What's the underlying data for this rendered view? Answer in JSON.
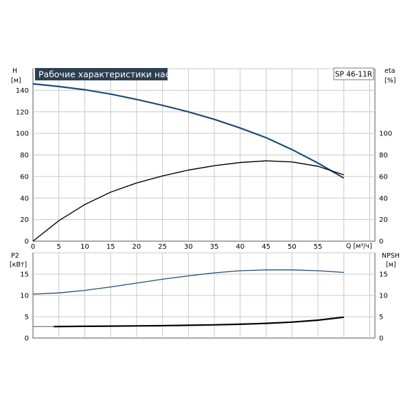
{
  "chart_data": [
    {
      "type": "line",
      "title": "Рабочие характеристики насоса",
      "model": "SP 46-11R",
      "xlabel": "Q [м³/ч]",
      "ylabel_left_top": "H",
      "ylabel_left_unit": "[м]",
      "ylabel_right_top": "eta",
      "ylabel_right_unit": "[%]",
      "xlim": [
        0,
        66
      ],
      "ylim": [
        0,
        160
      ],
      "ylim_right": [
        0,
        160
      ],
      "x_ticks": [
        0,
        5,
        10,
        15,
        20,
        25,
        30,
        35,
        40,
        45,
        50,
        55
      ],
      "y_ticks_left": [
        0,
        20,
        40,
        60,
        80,
        100,
        120,
        140
      ],
      "y_ticks_right": [
        0,
        20,
        40,
        60,
        80,
        100
      ],
      "grid": true,
      "series": [
        {
          "role": "head",
          "axis": "left",
          "color": "#1e4a78",
          "x": [
            0,
            5,
            10,
            15,
            20,
            25,
            30,
            35,
            40,
            45,
            50,
            55,
            60
          ],
          "y": [
            146,
            143.5,
            140.5,
            136.5,
            131.5,
            126,
            120,
            113,
            105,
            96,
            85,
            72.5,
            58.5
          ]
        },
        {
          "role": "efficiency",
          "axis": "right",
          "color": "#000000",
          "x": [
            0,
            5,
            10,
            15,
            20,
            25,
            30,
            35,
            40,
            45,
            50,
            55,
            60
          ],
          "y": [
            0,
            19,
            34,
            45.5,
            54,
            60.5,
            66,
            70,
            73,
            74.5,
            73.5,
            69.5,
            61.5
          ]
        }
      ]
    },
    {
      "type": "line",
      "xlim": [
        0,
        66
      ],
      "ylim": [
        0,
        20
      ],
      "ylim_right": [
        0,
        20
      ],
      "ylabel_left_top": "P2",
      "ylabel_left_unit": "[кВт]",
      "ylabel_right_top": "NPSH",
      "ylabel_right_unit": "[м]",
      "y_ticks_left": [
        0,
        5,
        10,
        15
      ],
      "y_ticks_right": [
        0,
        5,
        10,
        15
      ],
      "grid": true,
      "series": [
        {
          "role": "power",
          "axis": "left",
          "color": "#1e4a78",
          "x": [
            0,
            5,
            10,
            15,
            20,
            25,
            30,
            35,
            40,
            45,
            50,
            55,
            60
          ],
          "y": [
            10.3,
            10.6,
            11.2,
            12.0,
            12.9,
            13.8,
            14.6,
            15.3,
            15.8,
            16.0,
            16.0,
            15.8,
            15.4
          ]
        },
        {
          "role": "npsh",
          "axis": "right",
          "color": "#000000",
          "x": [
            4,
            10,
            15,
            20,
            25,
            30,
            35,
            40,
            45,
            50,
            55,
            60
          ],
          "y": [
            2.7,
            2.75,
            2.8,
            2.85,
            2.9,
            3.0,
            3.1,
            3.25,
            3.45,
            3.75,
            4.2,
            4.9
          ]
        }
      ]
    }
  ]
}
